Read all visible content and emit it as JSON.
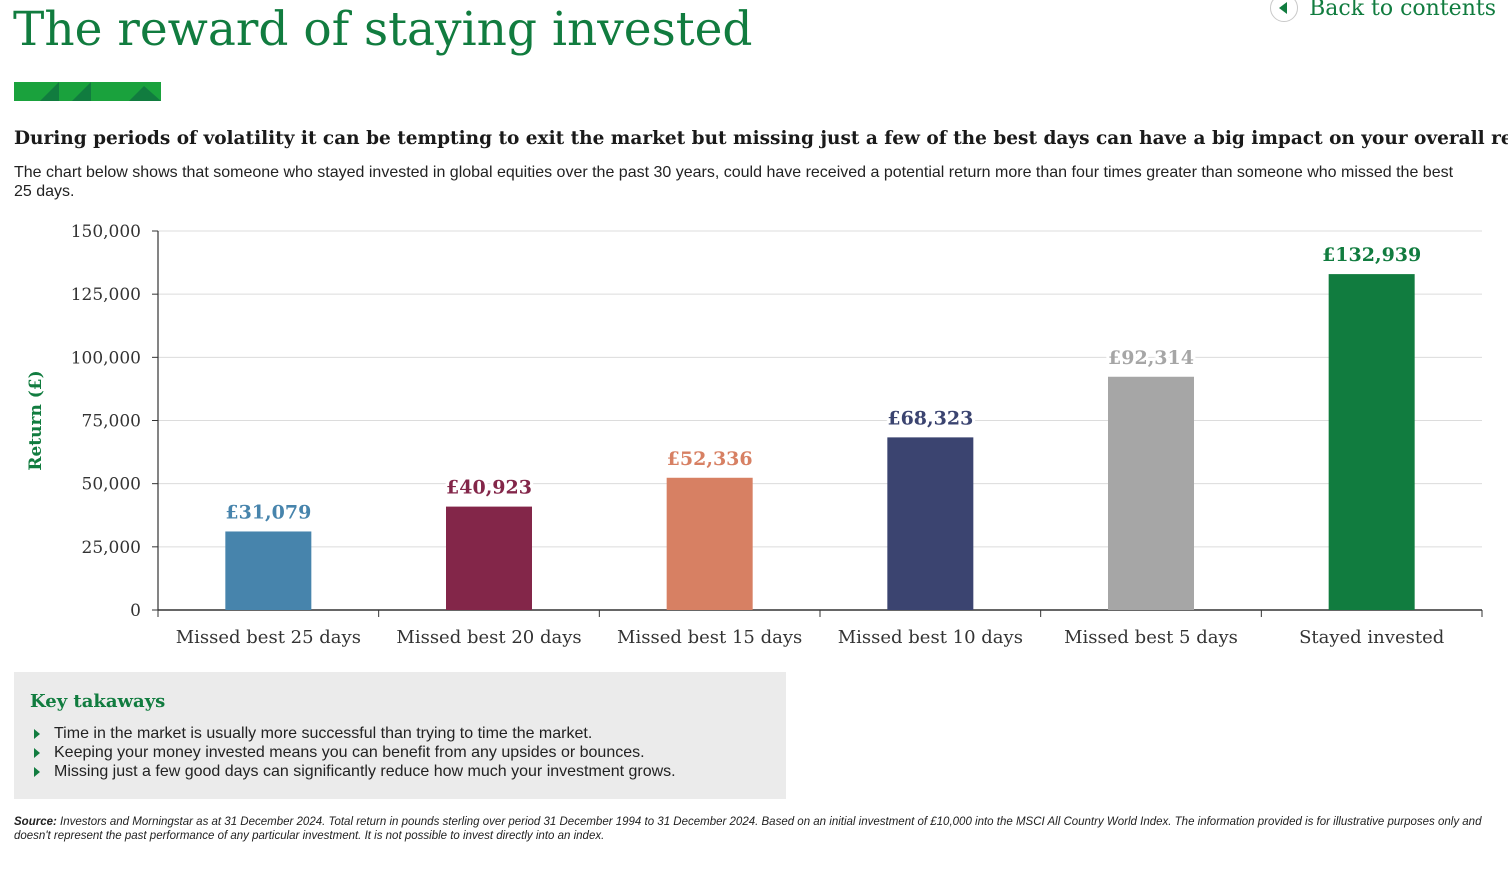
{
  "header": {
    "title": "The reward of staying invested",
    "back_label": "Back to contents"
  },
  "colors": {
    "brand_green": "#117c3f",
    "deco_green_light": "#1aa23d",
    "deco_green_dark": "#117c3f"
  },
  "lead": "During periods of volatility it can be tempting to exit the market but missing just a few of the best days can have a big impact on your overall return.",
  "intro": "The chart below shows that someone who stayed invested in global equities over the past 30 years, could have received a potential return more than four times greater than someone who missed the best 25 days.",
  "chart_data": {
    "type": "bar",
    "title": "",
    "xlabel": "",
    "ylabel": "Return (£)",
    "ylim": [
      0,
      150000
    ],
    "yticks": [
      0,
      25000,
      50000,
      75000,
      100000,
      125000,
      150000
    ],
    "ytick_labels": [
      "0",
      "25,000",
      "50,000",
      "75,000",
      "100,000",
      "125,000",
      "150,000"
    ],
    "grid": true,
    "categories": [
      "Missed best 25 days",
      "Missed best 20 days",
      "Missed best 15 days",
      "Missed best 10 days",
      "Missed best 5 days",
      "Stayed invested"
    ],
    "values": [
      31079,
      40923,
      52336,
      68323,
      92314,
      132939
    ],
    "value_labels": [
      "£31,079",
      "£40,923",
      "£52,336",
      "£68,323",
      "£92,314",
      "£132,939"
    ],
    "colors": [
      "#4784ac",
      "#832649",
      "#d78063",
      "#3b4470",
      "#a6a6a6",
      "#117c3f"
    ]
  },
  "takeaways": {
    "title": "Key takaways",
    "items": [
      "Time in the market is usually more successful than trying to time the market.",
      "Keeping your money invested means you can benefit from any upsides or bounces.",
      "Missing just a few good days can significantly reduce how much your investment grows."
    ]
  },
  "source": {
    "label": "Source:",
    "text": " Investors and Morningstar as at 31 December 2024. Total return in pounds sterling over period 31 December 1994 to 31 December 2024. Based on an initial investment of £10,000 into the MSCI All Country World Index. The information provided is for illustrative purposes only and doesn't represent the past performance of any particular investment. It is not possible to invest directly into an index."
  }
}
